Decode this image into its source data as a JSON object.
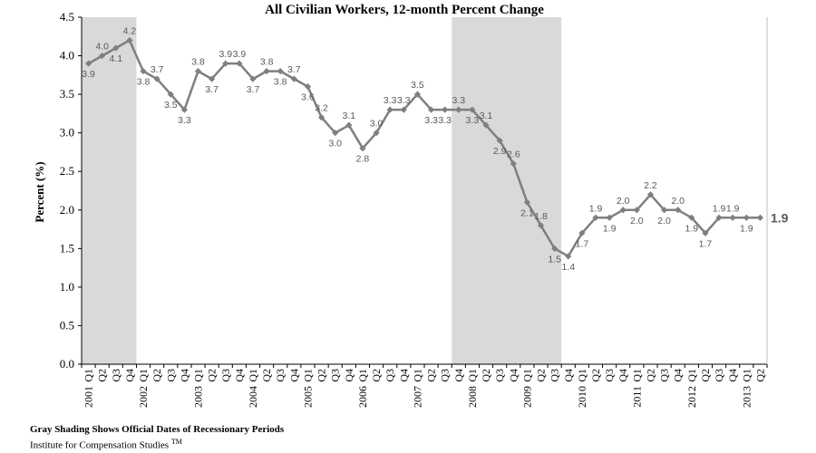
{
  "chart_data": {
    "type": "line",
    "title": "All Civilian Workers, 12-month Percent Change",
    "ylabel": "Percent  (%)",
    "xlabel": "",
    "ylim": [
      0,
      4.5
    ],
    "yticks": [
      "0.0",
      "0.5",
      "1.0",
      "1.5",
      "2.0",
      "2.5",
      "3.0",
      "3.5",
      "4.0",
      "4.5"
    ],
    "grid": false,
    "line_color": "#7f7f7f",
    "shading_color": "#d9d9d9",
    "quarters": [
      "Q1",
      "Q2",
      "Q3",
      "Q4",
      "Q1",
      "Q2",
      "Q3",
      "Q4",
      "Q1",
      "Q2",
      "Q3",
      "Q4",
      "Q1",
      "Q2",
      "Q3",
      "Q4",
      "Q1",
      "Q2",
      "Q3",
      "Q4",
      "Q1",
      "Q2",
      "Q3",
      "Q4",
      "Q1",
      "Q2",
      "Q3",
      "Q4",
      "Q1",
      "Q2",
      "Q3",
      "Q4",
      "Q1",
      "Q2",
      "Q3",
      "Q4",
      "Q1",
      "Q2",
      "Q3",
      "Q4",
      "Q1",
      "Q2",
      "Q3",
      "Q4",
      "Q1",
      "Q2",
      "Q3",
      "Q4",
      "Q1",
      "Q2"
    ],
    "years": [
      {
        "label": "2001",
        "index": 0
      },
      {
        "label": "2002",
        "index": 4
      },
      {
        "label": "2003",
        "index": 8
      },
      {
        "label": "2004",
        "index": 12
      },
      {
        "label": "2005",
        "index": 16
      },
      {
        "label": "2006",
        "index": 20
      },
      {
        "label": "2007",
        "index": 24
      },
      {
        "label": "2008",
        "index": 28
      },
      {
        "label": "2009",
        "index": 32
      },
      {
        "label": "2010",
        "index": 36
      },
      {
        "label": "2011",
        "index": 40
      },
      {
        "label": "2012",
        "index": 44
      },
      {
        "label": "2013",
        "index": 48
      }
    ],
    "values": [
      3.9,
      4.0,
      4.1,
      4.2,
      3.8,
      3.7,
      3.5,
      3.3,
      3.8,
      3.7,
      3.9,
      3.9,
      3.7,
      3.8,
      3.8,
      3.7,
      3.6,
      3.2,
      3.0,
      3.1,
      2.8,
      3.0,
      3.3,
      3.3,
      3.5,
      3.3,
      3.3,
      3.3,
      3.3,
      3.1,
      2.9,
      2.6,
      2.1,
      1.8,
      1.5,
      1.4,
      1.7,
      1.9,
      1.9,
      2.0,
      2.0,
      2.2,
      2.0,
      2.0,
      1.9,
      1.7,
      1.9,
      1.9,
      1.9,
      1.9
    ],
    "value_labels": [
      "3.9",
      "4.0",
      "4.1",
      "4.2",
      "3.8",
      "3.7",
      "3.5",
      "3.3",
      "3.8",
      "3.7",
      "3.9",
      "3.9",
      "3.7",
      "3.8",
      "3.8",
      "3.7",
      "3.6",
      "3.2",
      "3.0",
      "3.1",
      "2.8",
      "3.0",
      "3.3",
      "3.3",
      "3.5",
      "3.3",
      "3.3",
      "3.3",
      "3.3",
      "3.1",
      "2.9",
      "2.6",
      "2.1",
      "1.8",
      "1.5",
      "1.4",
      "1.7",
      "1.9",
      "1.9",
      "2.0",
      "2.0",
      "2.2",
      "2.0",
      "2.0",
      "1.9",
      "1.7",
      "1.9",
      "1.9",
      "1.9",
      "1.9"
    ],
    "recessions": [
      {
        "start": 0,
        "end": 3
      },
      {
        "start": 27,
        "end": 34
      }
    ]
  },
  "footer": {
    "note": "Gray  Shading  Shows  Official Dates  of  Recessionary Periods",
    "source": "Institute for Compensation Studies",
    "source_mark": "TM"
  }
}
